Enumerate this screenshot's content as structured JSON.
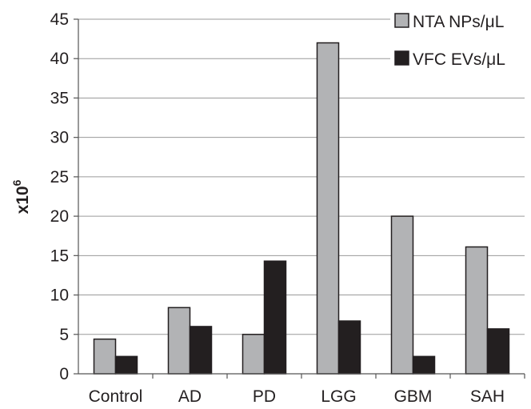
{
  "chart_data": {
    "type": "bar",
    "title": "",
    "xlabel": "",
    "ylabel": "x10",
    "ylabel_exponent": "6",
    "ylim": [
      0,
      45
    ],
    "ytick_step": 5,
    "yticks": [
      "0",
      "5",
      "10",
      "15",
      "20",
      "25",
      "30",
      "35",
      "40",
      "45"
    ],
    "grid": true,
    "legend_position": "top-right",
    "categories": [
      "Control",
      "AD",
      "PD",
      "LGG",
      "GBM",
      "SAH"
    ],
    "series": [
      {
        "name": "NTA NPs/μL",
        "color": "#b2b3b5",
        "values": [
          4.4,
          8.4,
          5.0,
          42.0,
          20.0,
          16.1
        ]
      },
      {
        "name": "VFC EVs/μL",
        "color": "#231f20",
        "values": [
          2.2,
          6.0,
          14.3,
          6.7,
          2.2,
          5.7
        ]
      }
    ]
  }
}
